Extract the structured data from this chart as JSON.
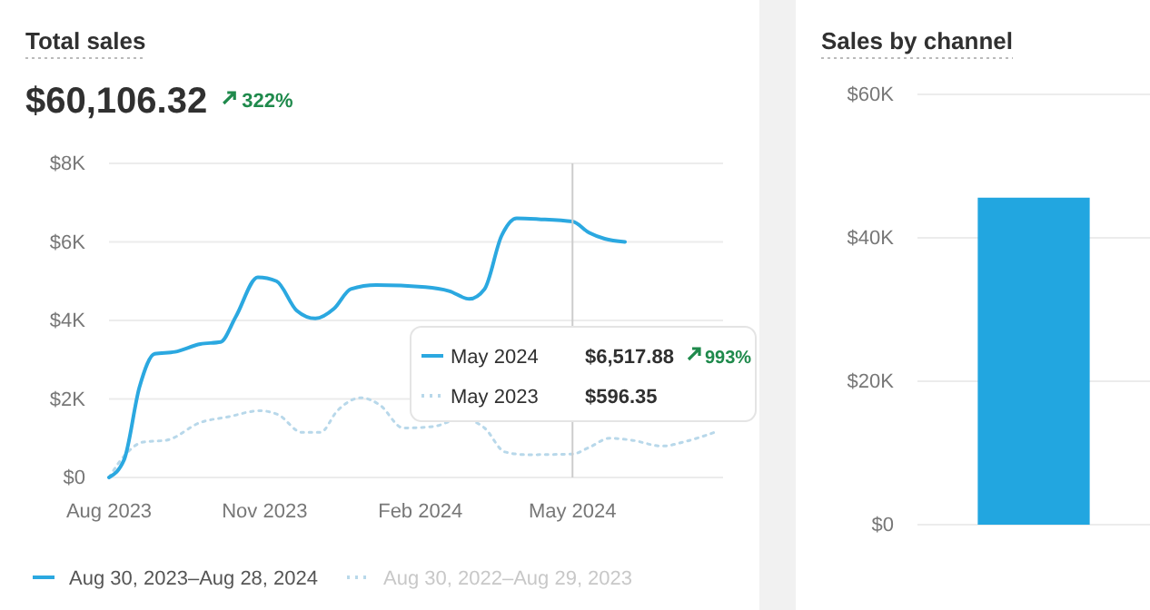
{
  "chart_data": [
    {
      "type": "line",
      "title": "Total sales",
      "subtitle": "$60,106.32",
      "annotations": [
        "322%",
        "May 2024",
        "$6,517.88",
        "993%",
        "May 2023",
        "$596.35"
      ],
      "xlim": [
        "2023-08-01",
        "2024-07-29"
      ],
      "xticks": [
        {
          "value": "2023-08-01",
          "label": "Aug 2023"
        },
        {
          "value": "2023-11-01",
          "label": "Nov 2023"
        },
        {
          "value": "2024-02-01",
          "label": "Feb 2024"
        },
        {
          "value": "2024-05-01",
          "label": "May 2024"
        }
      ],
      "ylim": [
        0,
        8000
      ],
      "yticks": [
        {
          "value": 0,
          "label": "$0"
        },
        {
          "value": 2000,
          "label": "$2K"
        },
        {
          "value": 4000,
          "label": "$4K"
        },
        {
          "value": 6000,
          "label": "$6K"
        },
        {
          "value": 8000,
          "label": "$8K"
        }
      ],
      "grid": "y",
      "legend": "bottom",
      "ref_lines": [
        {
          "axis": "x",
          "value": "2024-05-01",
          "label": null,
          "color": "#cccccc"
        }
      ],
      "series": [
        {
          "name": "Aug 30, 2023–Aug 28, 2024",
          "color": "#2ba8e0",
          "line_style": "solid",
          "x": [
            "2023-08-01",
            "2023-08-10",
            "2023-08-19",
            "2023-08-28",
            "2023-09-09",
            "2023-09-24",
            "2023-10-06",
            "2023-10-15",
            "2023-10-28",
            "2023-11-08",
            "2023-11-20",
            "2023-12-01",
            "2023-12-12",
            "2023-12-22",
            "2024-01-06",
            "2024-02-04",
            "2024-02-18",
            "2024-03-01",
            "2024-03-10",
            "2024-03-20",
            "2024-03-29",
            "2024-04-11",
            "2024-05-01",
            "2024-05-11",
            "2024-05-20",
            "2024-06-01"
          ],
          "values": [
            0,
            460,
            2300,
            3150,
            3200,
            3400,
            3450,
            4100,
            5100,
            5000,
            4250,
            4050,
            4300,
            4800,
            4900,
            4850,
            4750,
            4550,
            4800,
            6150,
            6600,
            6580,
            6517.88,
            6230,
            6080,
            6000
          ]
        },
        {
          "name": "Aug 30, 2022–Aug 29, 2023",
          "color": "#b8d8ea",
          "line_style": "dotted",
          "x": [
            "2023-08-01",
            "2023-08-11",
            "2023-08-21",
            "2023-09-04",
            "2023-09-24",
            "2023-10-11",
            "2023-10-29",
            "2023-11-09",
            "2023-11-23",
            "2023-12-04",
            "2023-12-14",
            "2023-12-28",
            "2024-01-08",
            "2024-01-22",
            "2024-02-09",
            "2024-02-25",
            "2024-03-10",
            "2024-03-22",
            "2024-04-04",
            "2024-05-01",
            "2024-05-11",
            "2024-05-23",
            "2024-06-05",
            "2024-06-23",
            "2024-07-07",
            "2024-07-24"
          ],
          "values": [
            0,
            600,
            900,
            950,
            1400,
            1550,
            1700,
            1600,
            1150,
            1150,
            1700,
            2030,
            1850,
            1260,
            1300,
            1500,
            1260,
            650,
            580,
            596.35,
            770,
            1000,
            950,
            800,
            920,
            1150
          ]
        }
      ]
    },
    {
      "type": "bar",
      "title": "Sales by channel",
      "categories": [
        null
      ],
      "values": [
        45600
      ],
      "color": "#22a6e0",
      "ylim": [
        0,
        60000
      ],
      "yticks": [
        {
          "value": 0,
          "label": "$0"
        },
        {
          "value": 20000,
          "label": "$20K"
        },
        {
          "value": 40000,
          "label": "$40K"
        },
        {
          "value": 60000,
          "label": "$60K"
        }
      ],
      "grid": "y"
    }
  ]
}
